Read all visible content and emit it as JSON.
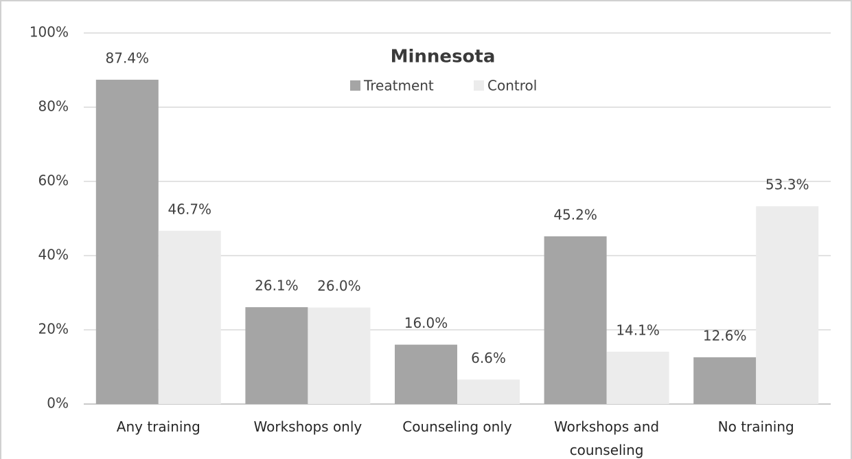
{
  "chart_data": {
    "type": "bar",
    "title": "Minnesota",
    "categories": [
      "Any training",
      "Workshops only",
      "Counseling only",
      "Workshops and counseling",
      "No training"
    ],
    "series": [
      {
        "name": "Treatment",
        "color": "#a5a5a5",
        "values": [
          87.4,
          26.1,
          16.0,
          45.2,
          12.6
        ],
        "value_labels": [
          "87.4%",
          "26.1%",
          "16.0%",
          "45.2%",
          "12.6%"
        ]
      },
      {
        "name": "Control",
        "color": "#ececec",
        "values": [
          46.7,
          26.0,
          6.6,
          14.1,
          53.3
        ],
        "value_labels": [
          "46.7%",
          "26.0%",
          "6.6%",
          "14.1%",
          "53.3%"
        ]
      }
    ],
    "ylim": [
      0,
      100
    ],
    "yticks": [
      {
        "value": 0,
        "label": "0%"
      },
      {
        "value": 20,
        "label": "20%"
      },
      {
        "value": 40,
        "label": "40%"
      },
      {
        "value": 60,
        "label": "60%"
      },
      {
        "value": 80,
        "label": "80%"
      },
      {
        "value": 100,
        "label": "100%"
      }
    ],
    "grid": true,
    "legend": "top"
  }
}
